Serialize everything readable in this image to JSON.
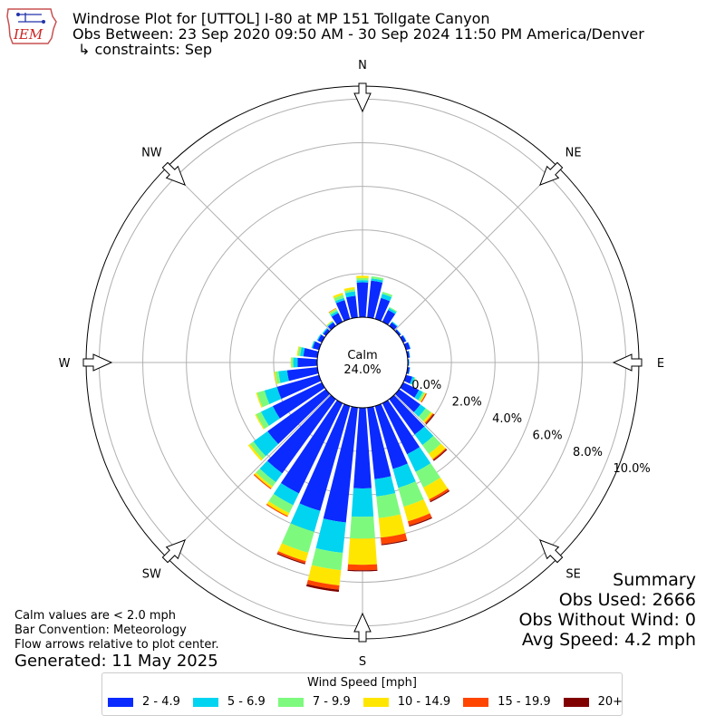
{
  "header": {
    "logo_text": "IEM",
    "title_line1": "Windrose Plot for [UTTOL] I-80 at MP 151 Tollgate Canyon",
    "title_line2": "Obs Between: 23 Sep 2020 09:50 AM - 30 Sep 2024 11:50 PM America/Denver",
    "title_line3": "↳ constraints: Sep"
  },
  "summary": {
    "title": "Summary",
    "obs_used": "Obs Used: 2666",
    "obs_without_wind": "Obs Without Wind: 0",
    "avg_speed": "Avg Speed: 4.2 mph"
  },
  "footer": {
    "calm_note": "Calm values are < 2.0 mph",
    "bar_convention": "Bar Convention: Meteorology",
    "flow_note": "Flow arrows relative to plot center.",
    "generated": "Generated: 11 May 2025"
  },
  "legend": {
    "title": "Wind Speed [mph]",
    "items": [
      {
        "label": "2 - 4.9",
        "color": "#0a2aff"
      },
      {
        "label": "5 - 6.9",
        "color": "#00d4f0"
      },
      {
        "label": "7 - 9.9",
        "color": "#7dfa7d"
      },
      {
        "label": "10 - 14.9",
        "color": "#ffe600"
      },
      {
        "label": "15 - 19.9",
        "color": "#ff4500"
      },
      {
        "label": "20+",
        "color": "#800000"
      }
    ]
  },
  "chart_data": {
    "type": "windrose",
    "calm_label": "Calm",
    "calm_value": "24.0%",
    "radial_ticks": [
      "0.0%",
      "2.0%",
      "4.0%",
      "6.0%",
      "8.0%",
      "10.0%"
    ],
    "radial_tick_values": [
      0,
      2,
      4,
      6,
      8,
      10
    ],
    "rmax": 10.6,
    "compass_labels": [
      "N",
      "NE",
      "E",
      "SE",
      "S",
      "SW",
      "W",
      "NW"
    ],
    "direction_step_deg": 10,
    "directions_deg": [
      0,
      10,
      20,
      30,
      40,
      50,
      60,
      70,
      80,
      90,
      100,
      110,
      120,
      130,
      140,
      150,
      160,
      170,
      180,
      190,
      200,
      210,
      220,
      230,
      240,
      250,
      260,
      270,
      280,
      290,
      300,
      310,
      320,
      330,
      340,
      350
    ],
    "speed_bins": [
      "2 - 4.9",
      "5 - 6.9",
      "7 - 9.9",
      "10 - 14.9",
      "15 - 19.9",
      "20+"
    ],
    "cumulative_pct": [
      [
        1.6,
        1.7,
        1.8,
        1.9,
        1.9,
        1.9
      ],
      [
        1.7,
        1.8,
        1.9,
        1.9,
        1.9,
        1.9
      ],
      [
        1.0,
        1.2,
        1.3,
        1.3,
        1.3,
        1.3
      ],
      [
        0.6,
        0.7,
        0.75,
        0.75,
        0.75,
        0.75
      ],
      [
        0.2,
        0.25,
        0.25,
        0.25,
        0.25,
        0.25
      ],
      [
        0.1,
        0.12,
        0.12,
        0.12,
        0.12,
        0.12
      ],
      [
        0.15,
        0.17,
        0.17,
        0.17,
        0.17,
        0.17
      ],
      [
        0.2,
        0.22,
        0.22,
        0.22,
        0.22,
        0.22
      ],
      [
        0.1,
        0.12,
        0.12,
        0.12,
        0.12,
        0.12
      ],
      [
        0.05,
        0.07,
        0.07,
        0.07,
        0.07,
        0.07
      ],
      [
        0.1,
        0.12,
        0.12,
        0.12,
        0.12,
        0.12
      ],
      [
        0.3,
        0.4,
        0.45,
        0.45,
        0.45,
        0.45
      ],
      [
        0.8,
        1.0,
        1.1,
        1.15,
        1.2,
        1.2
      ],
      [
        1.2,
        1.5,
        1.8,
        1.9,
        1.95,
        2.0
      ],
      [
        2.0,
        2.6,
        3.1,
        3.4,
        3.45,
        3.5
      ],
      [
        2.6,
        3.5,
        4.3,
        4.9,
        5.0,
        5.05
      ],
      [
        3.0,
        3.9,
        4.8,
        5.5,
        5.7,
        5.75
      ],
      [
        3.3,
        4.1,
        5.1,
        6.0,
        6.3,
        6.35
      ],
      [
        3.7,
        5.0,
        6.0,
        7.2,
        7.45,
        7.5
      ],
      [
        5.3,
        6.7,
        7.5,
        8.2,
        8.4,
        8.5
      ],
      [
        5.0,
        6.0,
        7.0,
        7.4,
        7.5,
        7.55
      ],
      [
        4.6,
        5.2,
        5.6,
        5.75,
        5.8,
        5.8
      ],
      [
        4.2,
        4.7,
        4.95,
        5.05,
        5.1,
        5.1
      ],
      [
        3.3,
        4.1,
        4.3,
        4.4,
        4.4,
        4.4
      ],
      [
        2.5,
        3.1,
        3.35,
        3.4,
        3.4,
        3.4
      ],
      [
        2.0,
        2.6,
        2.95,
        3.0,
        3.0,
        3.0
      ],
      [
        1.4,
        1.8,
        1.95,
        2.0,
        2.0,
        2.0
      ],
      [
        0.9,
        1.1,
        1.2,
        1.22,
        1.22,
        1.22
      ],
      [
        0.65,
        0.8,
        0.9,
        0.95,
        0.95,
        0.95
      ],
      [
        0.3,
        0.35,
        0.37,
        0.37,
        0.37,
        0.37
      ],
      [
        0.2,
        0.25,
        0.25,
        0.25,
        0.25,
        0.25
      ],
      [
        0.15,
        0.2,
        0.2,
        0.2,
        0.2,
        0.2
      ],
      [
        0.2,
        0.25,
        0.27,
        0.3,
        0.3,
        0.3
      ],
      [
        0.45,
        0.55,
        0.65,
        0.68,
        0.7,
        0.7
      ],
      [
        0.9,
        1.0,
        1.15,
        1.25,
        1.25,
        1.25
      ],
      [
        1.0,
        1.2,
        1.3,
        1.4,
        1.4,
        1.4
      ]
    ]
  }
}
